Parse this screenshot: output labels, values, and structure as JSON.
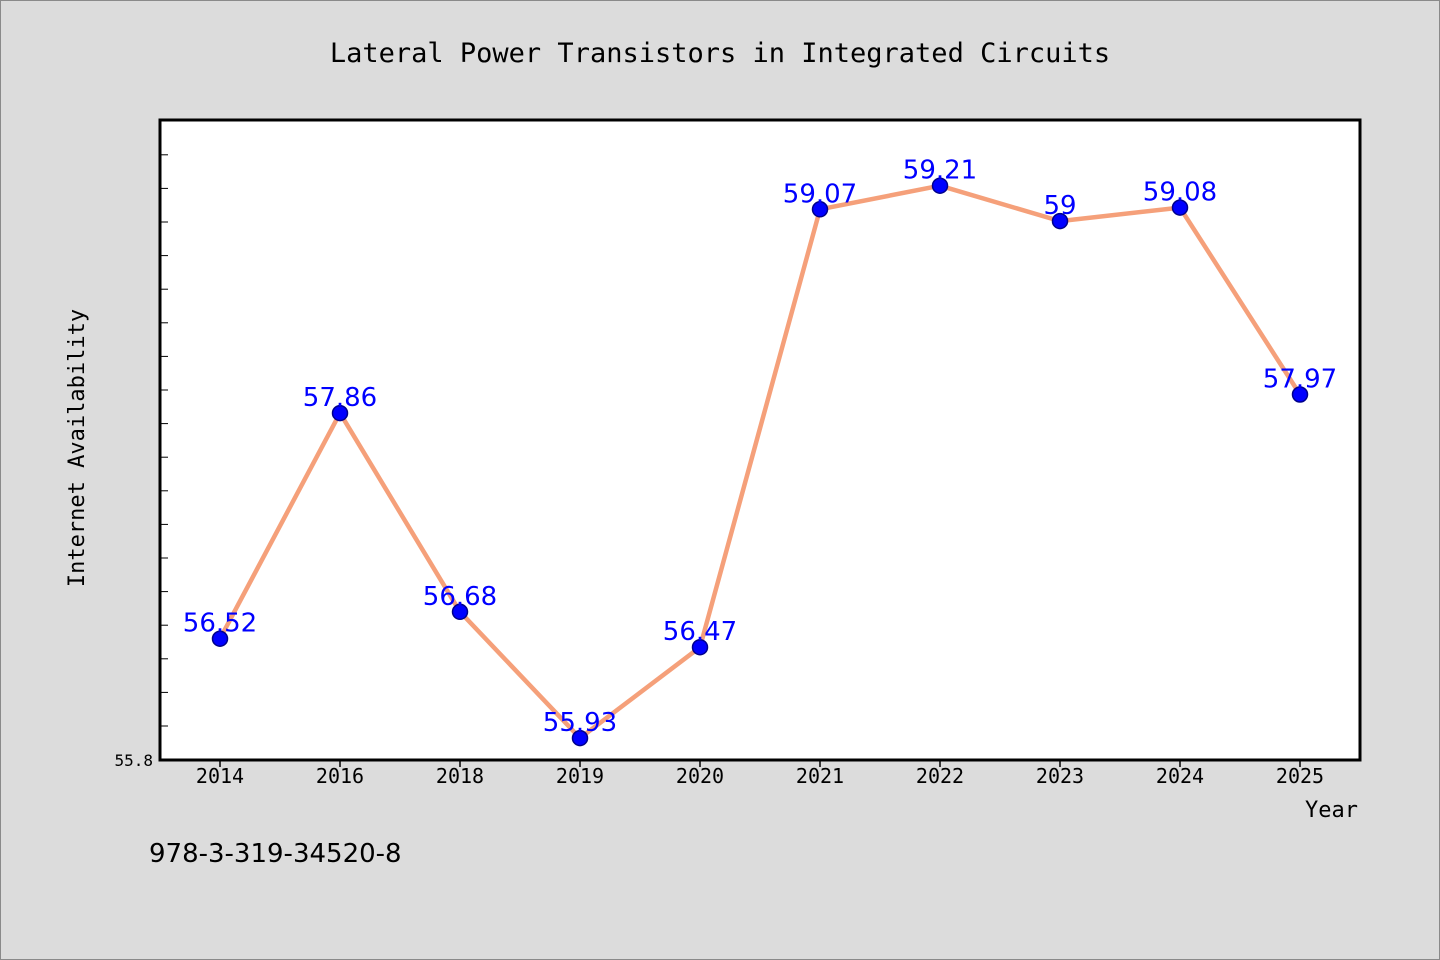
{
  "chart_data": {
    "type": "line",
    "title": "Lateral Power Transistors in Integrated Circuits",
    "xlabel": "Year",
    "ylabel": "Internet Availability",
    "categories": [
      "2014",
      "2016",
      "2018",
      "2019",
      "2020",
      "2021",
      "2022",
      "2023",
      "2024",
      "2025"
    ],
    "series": [
      {
        "values": [
          56.52,
          57.86,
          56.68,
          55.93,
          56.47,
          59.07,
          59.21,
          59,
          59.08,
          57.97
        ],
        "labels": [
          "56.52",
          "57.86",
          "56.68",
          "55.93",
          "56.47",
          "59.07",
          "59.21",
          "59",
          "59.08",
          "57.97"
        ]
      }
    ],
    "ylim": [
      55.8,
      59.6
    ],
    "ytick_label": "55.8",
    "grid": false,
    "legend": "none",
    "colors": {
      "line": "#f5a07a",
      "marker": "#0000ff",
      "marker_edge": "#00008b",
      "data_label": "#0000ff",
      "plot_bg": "#ffffff",
      "page_bg": "#dcdcdc"
    }
  },
  "footer": {
    "isbn": "978-3-319-34520-8"
  }
}
